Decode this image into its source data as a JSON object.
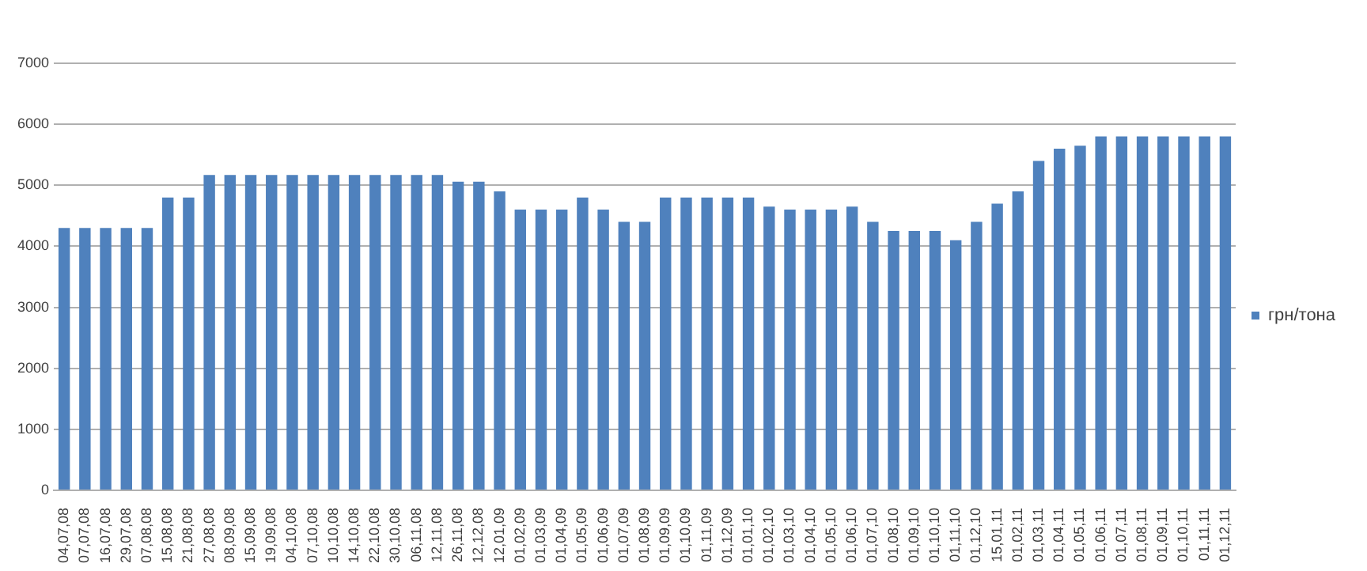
{
  "chart_data": {
    "type": "bar",
    "categories": [
      "04,07,08",
      "07,07,08",
      "16,07,08",
      "29,07,08",
      "07,08,08",
      "15,08,08",
      "21,08,08",
      "27,08,08",
      "08,09,08",
      "15,09,08",
      "19,09,08",
      "04,10,08",
      "07,10,08",
      "10,10,08",
      "14,10,08",
      "22,10,08",
      "30,10,08",
      "06,11,08",
      "12,11,08",
      "26,11,08",
      "12,12,08",
      "12,01,09",
      "01,02,09",
      "01,03,09",
      "01,04,09",
      "01,05,09",
      "01,06,09",
      "01,07,09",
      "01,08,09",
      "01,09,09",
      "01,10,09",
      "01,11,09",
      "01,12,09",
      "01,01,10",
      "01,02,10",
      "01,03,10",
      "01,04,10",
      "01,05,10",
      "01,06,10",
      "01,07,10",
      "01,08,10",
      "01,09,10",
      "01,10,10",
      "01,11,10",
      "01,12,10",
      "15,01,11",
      "01,02,11",
      "01,03,11",
      "01,04,11",
      "01,05,11",
      "01,06,11",
      "01,07,11",
      "01,08,11",
      "01,09,11",
      "01,10,11",
      "01,11,11",
      "01,12,11"
    ],
    "series": [
      {
        "name": "грн/тона",
        "color": "#4f81bd",
        "values": [
          4300,
          4300,
          4300,
          4300,
          4300,
          4800,
          4800,
          5170,
          5170,
          5170,
          5170,
          5170,
          5170,
          5170,
          5170,
          5170,
          5170,
          5170,
          5170,
          5060,
          5060,
          4900,
          4600,
          4600,
          4600,
          4800,
          4600,
          4400,
          4400,
          4800,
          4800,
          4800,
          4800,
          4800,
          4650,
          4600,
          4600,
          4600,
          4650,
          4400,
          4250,
          4250,
          4250,
          4100,
          4400,
          4700,
          4900,
          5400,
          5600,
          5650,
          5800,
          5800,
          5800,
          5800,
          5800,
          5800,
          5800
        ]
      }
    ],
    "ylim": [
      0,
      7000
    ],
    "yticks": [
      0,
      1000,
      2000,
      3000,
      4000,
      5000,
      6000,
      7000
    ],
    "grid": "y",
    "legend": "right"
  }
}
